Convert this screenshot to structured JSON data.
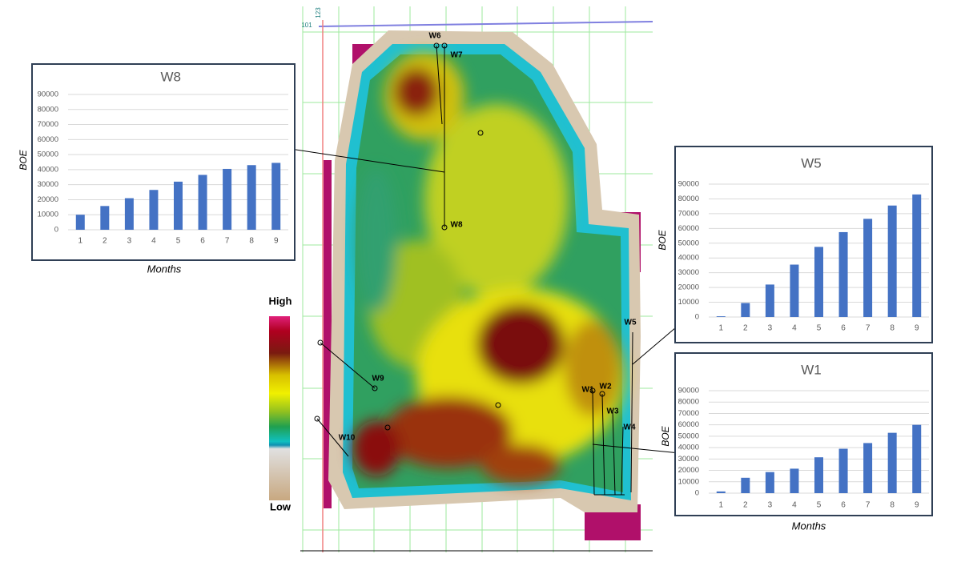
{
  "chart_data": [
    {
      "type": "bar",
      "title": "W8",
      "y_label": "BOE",
      "x_label": "Months",
      "color": "#4472c4",
      "grid": true,
      "categories": [
        "1",
        "2",
        "3",
        "4",
        "5",
        "6",
        "7",
        "8",
        "9"
      ],
      "values": [
        10000,
        15800,
        21000,
        26500,
        32000,
        36500,
        40500,
        43000,
        44500
      ],
      "ylim": [
        0,
        90000
      ],
      "yticks": [
        0,
        10000,
        20000,
        30000,
        40000,
        50000,
        60000,
        70000,
        80000,
        90000
      ]
    },
    {
      "type": "bar",
      "title": "W5",
      "y_label": "BOE",
      "color": "#4472c4",
      "grid": true,
      "categories": [
        "1",
        "2",
        "3",
        "4",
        "5",
        "6",
        "7",
        "8",
        "9"
      ],
      "values": [
        500,
        9500,
        22000,
        35500,
        47500,
        57500,
        66500,
        75500,
        83000
      ],
      "ylim": [
        0,
        90000
      ],
      "yticks": [
        0,
        10000,
        20000,
        30000,
        40000,
        50000,
        60000,
        70000,
        80000,
        90000
      ]
    },
    {
      "type": "bar",
      "title": "W1",
      "y_label": "BOE",
      "x_label": "Months",
      "color": "#4472c4",
      "grid": true,
      "categories": [
        "1",
        "2",
        "3",
        "4",
        "5",
        "6",
        "7",
        "8",
        "9"
      ],
      "values": [
        1500,
        13500,
        18500,
        21500,
        31500,
        39000,
        44000,
        53000,
        60000
      ],
      "ylim": [
        0,
        90000
      ],
      "yticks": [
        0,
        10000,
        20000,
        30000,
        40000,
        50000,
        60000,
        70000,
        80000,
        90000
      ]
    }
  ],
  "map": {
    "wells": [
      "W1",
      "W2",
      "W3",
      "W4",
      "W5",
      "W6",
      "W7",
      "W8",
      "W9",
      "W10"
    ],
    "colorbar": {
      "high": "High",
      "low": "Low"
    },
    "grid_labels": [
      "123",
      "101"
    ]
  }
}
